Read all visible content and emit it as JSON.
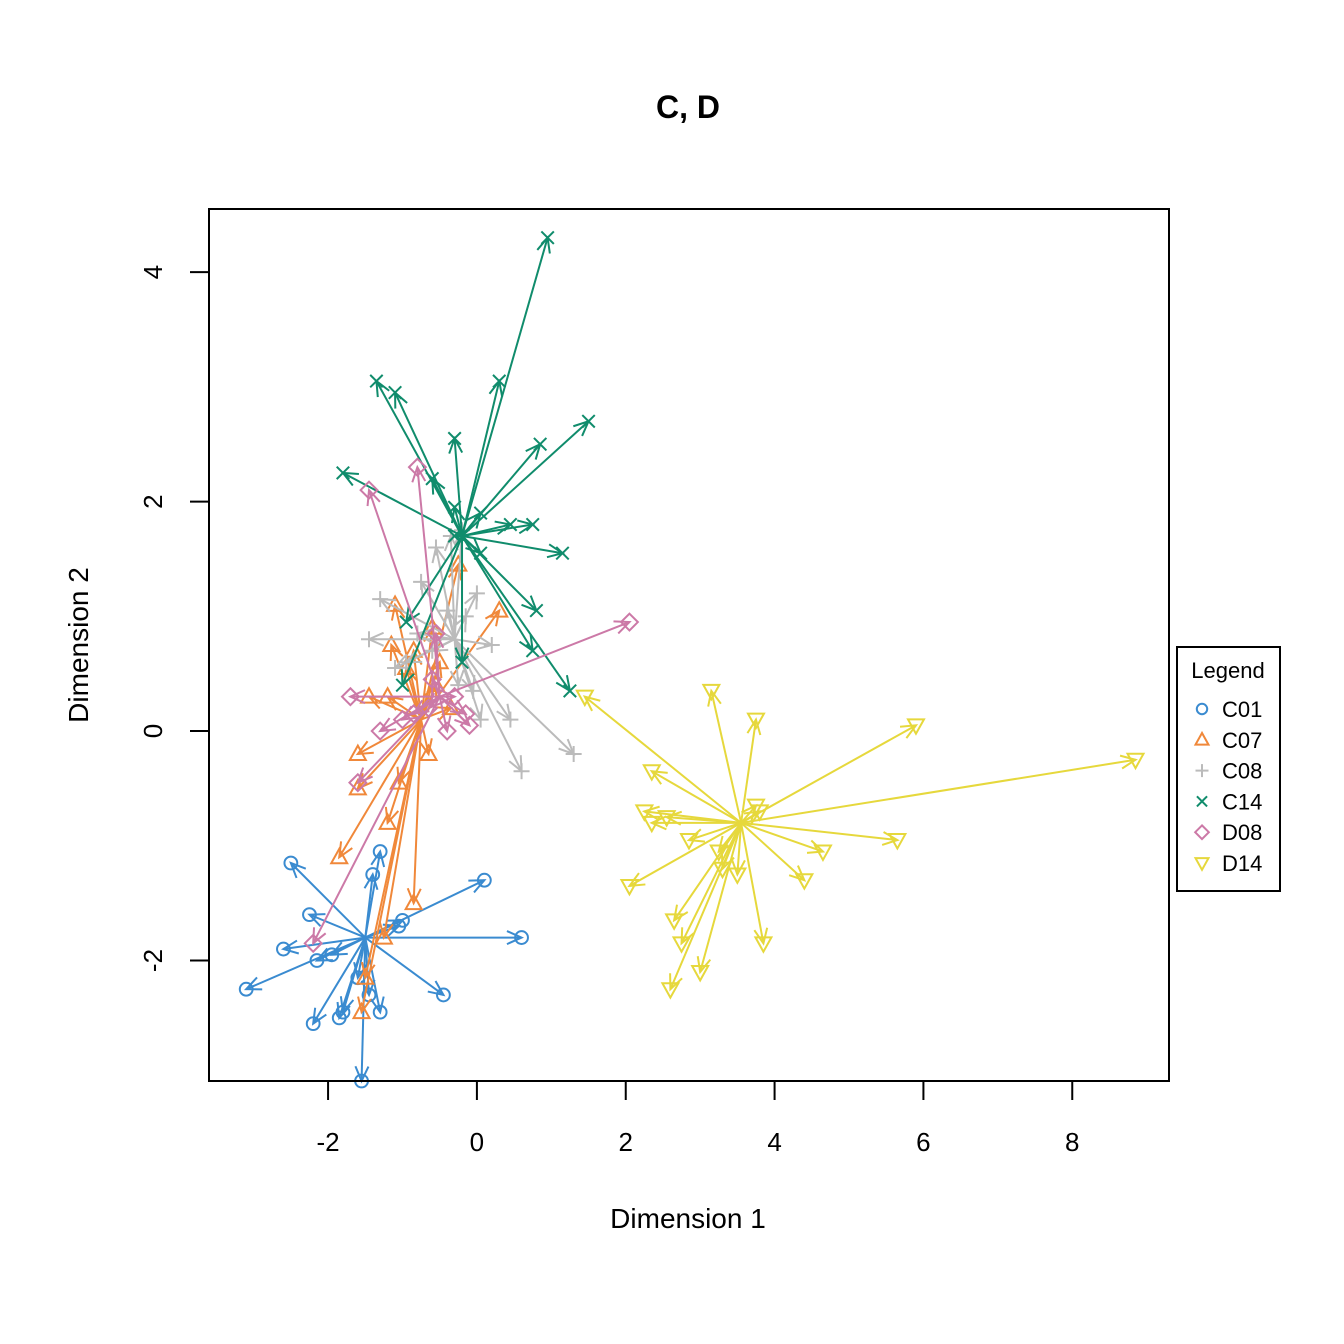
{
  "chart_data": {
    "type": "scatter",
    "title": "C, D",
    "xlabel": "Dimension 1",
    "ylabel": "Dimension 2",
    "xlim": [
      -3.6,
      9.3
    ],
    "ylim": [
      -3.05,
      4.55
    ],
    "xticks": [
      -2,
      0,
      2,
      4,
      6,
      8
    ],
    "yticks": [
      -2,
      0,
      2,
      4
    ],
    "grid": false,
    "legend": {
      "title": "Legend",
      "position": "right"
    },
    "series": [
      {
        "name": "C01",
        "marker": "circle",
        "color": "#3a8bd0",
        "center": [
          -1.5,
          -1.8
        ],
        "points": [
          [
            -2.5,
            -1.15
          ],
          [
            -2.6,
            -1.9
          ],
          [
            -3.1,
            -2.25
          ],
          [
            -2.2,
            -2.55
          ],
          [
            -1.8,
            -2.45
          ],
          [
            -1.55,
            -3.05
          ],
          [
            -1.3,
            -2.45
          ],
          [
            -0.45,
            -2.3
          ],
          [
            0.6,
            -1.8
          ],
          [
            0.1,
            -1.3
          ],
          [
            -1.05,
            -1.7
          ],
          [
            -1.3,
            -1.05
          ],
          [
            -1.4,
            -1.25
          ],
          [
            -2.25,
            -1.6
          ],
          [
            -2.15,
            -2.0
          ],
          [
            -1.95,
            -1.95
          ],
          [
            -1.85,
            -2.5
          ],
          [
            -1.45,
            -2.3
          ],
          [
            -1.6,
            -2.15
          ],
          [
            -1.0,
            -1.65
          ]
        ]
      },
      {
        "name": "C07",
        "marker": "triangle",
        "color": "#f0883a",
        "center": [
          -0.75,
          0.1
        ],
        "points": [
          [
            -1.1,
            1.1
          ],
          [
            -1.15,
            0.75
          ],
          [
            -0.85,
            0.7
          ],
          [
            -0.6,
            0.9
          ],
          [
            -0.25,
            1.45
          ],
          [
            0.3,
            1.05
          ],
          [
            -1.45,
            0.3
          ],
          [
            -1.6,
            -0.2
          ],
          [
            -1.6,
            -0.5
          ],
          [
            -1.85,
            -1.1
          ],
          [
            -1.05,
            -0.45
          ],
          [
            -1.2,
            -0.8
          ],
          [
            -0.85,
            -1.5
          ],
          [
            -0.65,
            -0.2
          ],
          [
            -1.25,
            -1.8
          ],
          [
            -1.55,
            -2.45
          ],
          [
            -0.35,
            0.2
          ],
          [
            -1.2,
            0.3
          ],
          [
            -0.95,
            0.55
          ],
          [
            -0.55,
            0.4
          ],
          [
            -0.5,
            0.6
          ],
          [
            -1.5,
            -2.15
          ]
        ]
      },
      {
        "name": "C08",
        "marker": "plus",
        "color": "#bbbbbb",
        "center": [
          -0.3,
          0.8
        ],
        "points": [
          [
            -1.3,
            1.15
          ],
          [
            -1.45,
            0.8
          ],
          [
            -1.1,
            0.55
          ],
          [
            -0.75,
            1.3
          ],
          [
            -0.4,
            1.05
          ],
          [
            -0.2,
            1.75
          ],
          [
            0.0,
            1.2
          ],
          [
            0.2,
            0.75
          ],
          [
            0.45,
            0.1
          ],
          [
            0.6,
            -0.35
          ],
          [
            1.3,
            -0.2
          ],
          [
            0.05,
            0.1
          ],
          [
            -0.25,
            0.4
          ],
          [
            -0.6,
            0.7
          ],
          [
            -0.8,
            0.85
          ],
          [
            -0.35,
            1.7
          ],
          [
            -0.05,
            0.35
          ],
          [
            -0.55,
            1.6
          ],
          [
            -0.15,
            1.0
          ],
          [
            -0.95,
            0.6
          ]
        ]
      },
      {
        "name": "C14",
        "marker": "x",
        "color": "#108c6c",
        "center": [
          -0.2,
          1.7
        ],
        "points": [
          [
            -1.35,
            3.05
          ],
          [
            -1.1,
            2.95
          ],
          [
            -1.8,
            2.25
          ],
          [
            -0.3,
            2.55
          ],
          [
            0.3,
            3.05
          ],
          [
            0.95,
            4.3
          ],
          [
            0.85,
            2.5
          ],
          [
            1.5,
            2.7
          ],
          [
            1.15,
            1.55
          ],
          [
            0.8,
            1.05
          ],
          [
            0.75,
            0.7
          ],
          [
            1.25,
            0.35
          ],
          [
            0.45,
            1.8
          ],
          [
            0.75,
            1.8
          ],
          [
            0.05,
            1.9
          ],
          [
            -0.6,
            2.2
          ],
          [
            -0.3,
            1.95
          ],
          [
            -0.2,
            0.6
          ],
          [
            -0.95,
            0.95
          ],
          [
            -1.0,
            0.4
          ],
          [
            0.05,
            1.55
          ],
          [
            -0.3,
            1.7
          ]
        ]
      },
      {
        "name": "D08",
        "marker": "diamond",
        "color": "#cc79a7",
        "center": [
          -0.5,
          0.3
        ],
        "points": [
          [
            -1.45,
            2.1
          ],
          [
            -0.8,
            2.3
          ],
          [
            2.05,
            0.95
          ],
          [
            -1.7,
            0.3
          ],
          [
            -1.3,
            0.0
          ],
          [
            -1.6,
            -0.45
          ],
          [
            -2.2,
            -1.85
          ],
          [
            -0.1,
            0.05
          ],
          [
            -0.55,
            0.85
          ],
          [
            -0.65,
            0.2
          ],
          [
            -0.3,
            0.3
          ],
          [
            -0.85,
            0.15
          ],
          [
            -0.15,
            0.15
          ],
          [
            -0.4,
            0.0
          ],
          [
            -0.6,
            0.45
          ],
          [
            -1.0,
            0.1
          ]
        ]
      },
      {
        "name": "D14",
        "marker": "triangle-down",
        "color": "#e6d83c",
        "center": [
          3.55,
          -0.8
        ],
        "points": [
          [
            1.45,
            0.3
          ],
          [
            2.35,
            -0.35
          ],
          [
            3.15,
            0.35
          ],
          [
            3.75,
            0.1
          ],
          [
            5.9,
            0.05
          ],
          [
            8.85,
            -0.25
          ],
          [
            5.65,
            -0.95
          ],
          [
            4.65,
            -1.05
          ],
          [
            4.4,
            -1.3
          ],
          [
            3.85,
            -1.85
          ],
          [
            3.3,
            -1.2
          ],
          [
            2.05,
            -1.35
          ],
          [
            2.6,
            -2.25
          ],
          [
            3.0,
            -2.1
          ],
          [
            2.75,
            -1.85
          ],
          [
            2.65,
            -1.65
          ],
          [
            2.25,
            -0.7
          ],
          [
            2.35,
            -0.8
          ],
          [
            2.85,
            -0.95
          ],
          [
            3.25,
            -1.05
          ],
          [
            3.8,
            -0.7
          ],
          [
            3.75,
            -0.65
          ],
          [
            2.55,
            -0.75
          ],
          [
            3.5,
            -1.25
          ]
        ]
      }
    ]
  }
}
